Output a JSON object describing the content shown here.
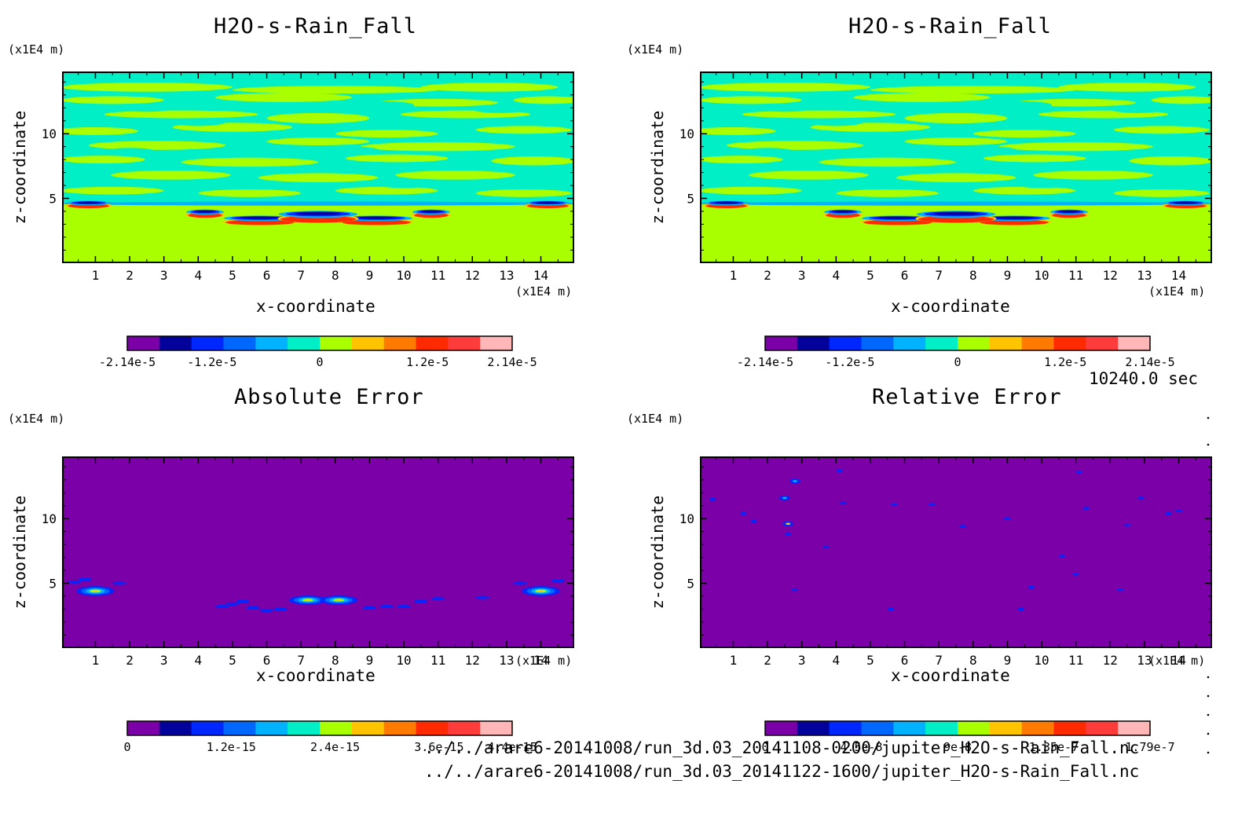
{
  "panels": [
    {
      "title": "H2O-s-Rain_Fall",
      "kind": "field",
      "z_unit": "(x1E4 m)",
      "x_unit": "(x1E4 m)",
      "xlabel": "x-coordinate",
      "ylabel": "z-coordinate",
      "colorbar_labels": [
        "-2.14e-5",
        "-1.2e-5",
        "0",
        "1.2e-5",
        "2.14e-5"
      ],
      "colorbar_label_pos": [
        0,
        0.22,
        0.5,
        0.78,
        1.0
      ]
    },
    {
      "title": "H2O-s-Rain_Fall",
      "kind": "field",
      "z_unit": "(x1E4 m)",
      "x_unit": "(x1E4 m)",
      "xlabel": "x-coordinate",
      "ylabel": "z-coordinate",
      "colorbar_labels": [
        "-2.14e-5",
        "-1.2e-5",
        "0",
        "1.2e-5",
        "2.14e-5"
      ],
      "colorbar_label_pos": [
        0,
        0.22,
        0.5,
        0.78,
        1.0
      ]
    },
    {
      "title": "Absolute Error",
      "kind": "abs",
      "z_unit": "(x1E4 m)",
      "x_unit": "(x1E4 m)",
      "xlabel": "x-coordinate",
      "ylabel": "z-coordinate",
      "colorbar_labels": [
        "0",
        "1.2e-15",
        "2.4e-15",
        "3.6e-15",
        "4.4e-15"
      ],
      "colorbar_label_pos": [
        0,
        0.27,
        0.54,
        0.81,
        1.0
      ]
    },
    {
      "title": "Relative Error",
      "kind": "rel",
      "z_unit": "(x1E4 m)",
      "x_unit": "(x1E4 m)",
      "xlabel": "x-coordinate",
      "ylabel": "z-coordinate",
      "colorbar_labels": [
        "0",
        "4.5e-8",
        "9e-8",
        "1.35e-7",
        "1.79e-7"
      ],
      "colorbar_label_pos": [
        0,
        0.25,
        0.5,
        0.75,
        1.0
      ]
    }
  ],
  "time_label": "10240.0 sec",
  "file_paths": [
    "../../arare6-20141008/run_3d.03_20141108-0200/jupiter_H2O-s-Rain_Fall.nc",
    "../../arare6-20141008/run_3d.03_20141122-1600/jupiter_H2O-s-Rain_Fall.nc"
  ],
  "chart_data": [
    {
      "type": "heatmap",
      "title": "H2O-s-Rain_Fall",
      "xlabel": "x-coordinate",
      "ylabel": "z-coordinate",
      "x_unit": "(x1E4 m)",
      "z_unit": "(x1E4 m)",
      "x_ticks": [
        1,
        2,
        3,
        4,
        5,
        6,
        7,
        8,
        9,
        10,
        11,
        12,
        13,
        14
      ],
      "y_ticks": [
        5,
        10
      ],
      "xlim": [
        0.05,
        14.95
      ],
      "ylim": [
        0.05,
        14.75
      ],
      "colorbar_range": [
        -2.14e-05,
        2.14e-05
      ],
      "colorbar_ticks": [
        -2.14e-05,
        -1.2e-05,
        0,
        1.2e-05,
        2.14e-05
      ],
      "colormap": [
        "#7b00a8",
        "#03039c",
        "#0027ff",
        "#0068ff",
        "#00b2ff",
        "#00efc7",
        "#a9ff00",
        "#ffc400",
        "#ff7a00",
        "#ff2a00",
        "#ff3c3c",
        "#ffb6b6"
      ]
    },
    {
      "type": "heatmap",
      "title": "H2O-s-Rain_Fall",
      "xlabel": "x-coordinate",
      "ylabel": "z-coordinate",
      "x_unit": "(x1E4 m)",
      "z_unit": "(x1E4 m)",
      "x_ticks": [
        1,
        2,
        3,
        4,
        5,
        6,
        7,
        8,
        9,
        10,
        11,
        12,
        13,
        14
      ],
      "y_ticks": [
        5,
        10
      ],
      "xlim": [
        0.05,
        14.95
      ],
      "ylim": [
        0.05,
        14.75
      ],
      "colorbar_range": [
        -2.14e-05,
        2.14e-05
      ],
      "colorbar_ticks": [
        -2.14e-05,
        -1.2e-05,
        0,
        1.2e-05,
        2.14e-05
      ],
      "colormap": [
        "#7b00a8",
        "#03039c",
        "#0027ff",
        "#0068ff",
        "#00b2ff",
        "#00efc7",
        "#a9ff00",
        "#ffc400",
        "#ff7a00",
        "#ff2a00",
        "#ff3c3c",
        "#ffb6b6"
      ]
    },
    {
      "type": "heatmap",
      "title": "Absolute Error",
      "xlabel": "x-coordinate",
      "ylabel": "z-coordinate",
      "x_unit": "(x1E4 m)",
      "z_unit": "(x1E4 m)",
      "x_ticks": [
        1,
        2,
        3,
        4,
        5,
        6,
        7,
        8,
        9,
        10,
        11,
        12,
        13,
        14
      ],
      "y_ticks": [
        5,
        10
      ],
      "xlim": [
        0.05,
        14.95
      ],
      "ylim": [
        0.05,
        14.75
      ],
      "colorbar_range": [
        0,
        4.4e-15
      ],
      "colorbar_ticks": [
        0,
        1.2e-15,
        2.4e-15,
        3.6e-15,
        4.4e-15
      ],
      "colormap": [
        "#7b00a8",
        "#03039c",
        "#0027ff",
        "#0068ff",
        "#00b2ff",
        "#00efc7",
        "#a9ff00",
        "#ffc400",
        "#ff7a00",
        "#ff2a00",
        "#ff3c3c",
        "#ffb6b6"
      ]
    },
    {
      "type": "heatmap",
      "title": "Relative Error",
      "xlabel": "x-coordinate",
      "ylabel": "z-coordinate",
      "x_unit": "(x1E4 m)",
      "z_unit": "(x1E4 m)",
      "x_ticks": [
        1,
        2,
        3,
        4,
        5,
        6,
        7,
        8,
        9,
        10,
        11,
        12,
        13,
        14
      ],
      "y_ticks": [
        5,
        10
      ],
      "xlim": [
        0.05,
        14.95
      ],
      "ylim": [
        0.05,
        14.75
      ],
      "colorbar_range": [
        0,
        1.79e-07
      ],
      "colorbar_ticks": [
        0,
        4.5e-08,
        9e-08,
        1.35e-07,
        1.79e-07
      ],
      "colormap": [
        "#7b00a8",
        "#03039c",
        "#0027ff",
        "#0068ff",
        "#00b2ff",
        "#00efc7",
        "#a9ff00",
        "#ffc400",
        "#ff7a00",
        "#ff2a00",
        "#ff3c3c",
        "#ffb6b6"
      ]
    }
  ]
}
